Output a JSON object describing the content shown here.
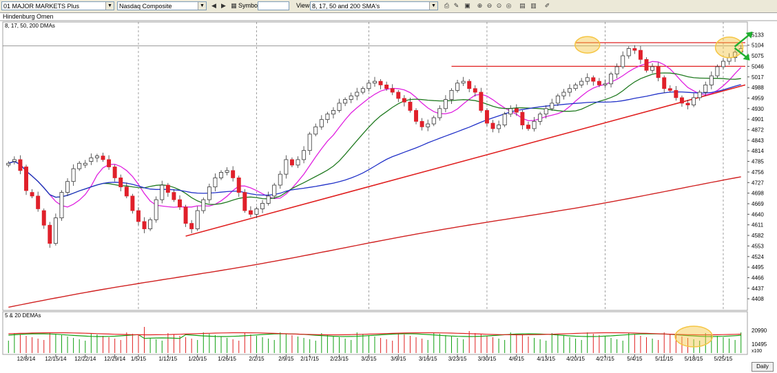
{
  "toolbar": {
    "list_select": "01 MAJOR MARKETS Plus",
    "index_select": "Nasdaq Composite",
    "symbol_label": "Symbol:",
    "symbol_value": "",
    "view_label": "View:",
    "view_select": "8, 17, 50 and 200 SMA's",
    "icons": [
      "left-arrow-icon",
      "right-arrow-icon",
      "print-icon",
      "edit-icon",
      "save-icon",
      "zoom-in-icon",
      "zoom-out-icon",
      "zoom-reset-icon",
      "zoom-fit-icon",
      "table-icon",
      "columns-icon",
      "paint-icon"
    ]
  },
  "panel_title": "Hindenburg Omen",
  "daily_button": "Daily",
  "colors": {
    "up": "#ffffff",
    "down": "#e0202a",
    "sma8": "#e020e0",
    "sma17": "#207a20",
    "sma50": "#2030c8",
    "sma200": "#d02020",
    "trend": "#e02020",
    "highlight": "#f5c542",
    "arrow": "#20b030",
    "vol_up": "#10a010",
    "vol_down": "#e02020"
  },
  "chart_data": [
    {
      "type": "candlestick",
      "legend": "8, 17, 50, 200 DMAs",
      "y_ticks": [
        5133,
        5104,
        5075,
        5046,
        5017,
        4988,
        4959,
        4930,
        4901,
        4872,
        4843,
        4814,
        4785,
        4756,
        4727,
        4698,
        4669,
        4640,
        4611,
        4582,
        4553,
        4524,
        4495,
        4466,
        4437,
        4408
      ],
      "ylim": [
        4380,
        5162
      ],
      "x_ticks": [
        "12/8/14",
        "12/15/14",
        "12/22/14",
        "12/29/14",
        "1/5/15",
        "1/12/15",
        "1/20/15",
        "1/26/15",
        "2/2/15",
        "2/9/15",
        "2/17/15",
        "2/23/15",
        "3/2/15",
        "3/9/15",
        "3/16/15",
        "3/23/15",
        "3/30/15",
        "4/6/15",
        "4/13/15",
        "4/20/15",
        "4/27/15",
        "5/4/15",
        "5/11/15",
        "5/18/15",
        "5/25/15"
      ],
      "x_tick_positions": [
        3,
        8,
        13,
        18,
        22,
        27,
        32,
        37,
        42,
        47,
        51,
        56,
        61,
        66,
        71,
        76,
        81,
        86,
        91,
        96,
        101,
        106,
        111,
        116,
        121
      ],
      "closes": [
        4780,
        4790,
        4760,
        4705,
        4690,
        4655,
        4610,
        4560,
        4630,
        4700,
        4730,
        4765,
        4780,
        4780,
        4795,
        4800,
        4790,
        4770,
        4740,
        4715,
        4690,
        4650,
        4620,
        4600,
        4625,
        4680,
        4720,
        4700,
        4680,
        4660,
        4615,
        4600,
        4650,
        4680,
        4715,
        4740,
        4755,
        4760,
        4740,
        4700,
        4650,
        4640,
        4655,
        4670,
        4690,
        4720,
        4750,
        4790,
        4775,
        4790,
        4815,
        4860,
        4880,
        4900,
        4915,
        4925,
        4945,
        4955,
        4965,
        4975,
        4985,
        5000,
        5005,
        4995,
        4985,
        4975,
        4958,
        4948,
        4925,
        4895,
        4880,
        4888,
        4905,
        4930,
        4955,
        4980,
        5000,
        5005,
        4985,
        4975,
        4925,
        4890,
        4875,
        4885,
        4915,
        4930,
        4920,
        4885,
        4875,
        4895,
        4915,
        4930,
        4945,
        4965,
        4975,
        4985,
        4995,
        5005,
        5015,
        5005,
        4995,
        4998,
        5025,
        5045,
        5075,
        5095,
        5090,
        5065,
        5035,
        5045,
        5015,
        4985,
        4980,
        4960,
        4945,
        4940,
        4960,
        4975,
        4995,
        5020,
        5045,
        5060,
        5070,
        5085,
        5095
      ],
      "opens": [
        4775,
        4785,
        4790,
        4770,
        4700,
        4690,
        4650,
        4610,
        4560,
        4630,
        4700,
        4730,
        4765,
        4775,
        4785,
        4795,
        4800,
        4790,
        4770,
        4740,
        4715,
        4690,
        4650,
        4620,
        4600,
        4625,
        4680,
        4720,
        4700,
        4680,
        4660,
        4615,
        4600,
        4650,
        4680,
        4715,
        4740,
        4755,
        4760,
        4740,
        4700,
        4650,
        4640,
        4655,
        4670,
        4690,
        4720,
        4750,
        4790,
        4775,
        4790,
        4815,
        4860,
        4880,
        4900,
        4915,
        4925,
        4945,
        4955,
        4965,
        4975,
        4985,
        5000,
        5005,
        4995,
        4985,
        4975,
        4958,
        4948,
        4925,
        4895,
        4880,
        4888,
        4905,
        4930,
        4955,
        4980,
        5000,
        5005,
        4985,
        4975,
        4925,
        4890,
        4875,
        4885,
        4915,
        4930,
        4920,
        4885,
        4875,
        4895,
        4915,
        4930,
        4945,
        4965,
        4975,
        4985,
        4995,
        5005,
        5015,
        5005,
        4995,
        4998,
        5025,
        5045,
        5075,
        5095,
        5090,
        5065,
        5035,
        5045,
        5015,
        4985,
        4980,
        4960,
        4945,
        4940,
        4960,
        4975,
        4995,
        5020,
        5045,
        5060,
        5070,
        5085
      ]
    },
    {
      "type": "line",
      "legend": "5 & 20 DEMAs",
      "y_ticks": [
        20990,
        10495
      ],
      "unit_label": "x100"
    }
  ]
}
